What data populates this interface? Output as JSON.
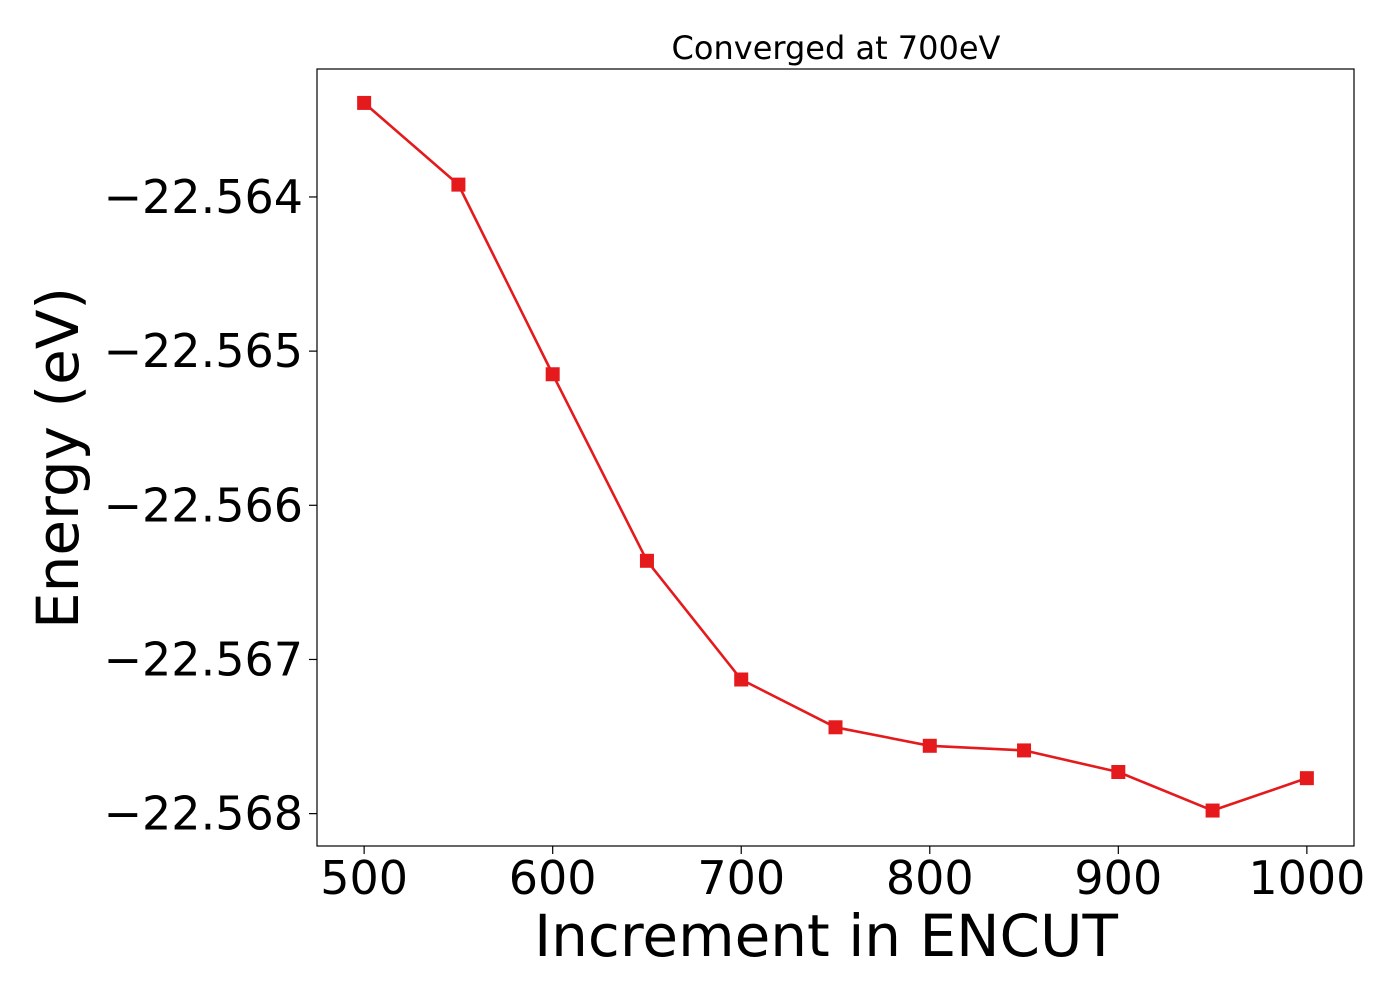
{
  "chart_data": {
    "type": "line",
    "title": "Converged at 700eV",
    "xlabel": "Increment in ENCUT",
    "ylabel": "Energy (eV)",
    "xlim": [
      475,
      1025
    ],
    "ylim": [
      -22.56821,
      -22.56317
    ],
    "x_ticks": [
      500,
      600,
      700,
      800,
      900,
      1000
    ],
    "x_tick_labels": [
      "500",
      "600",
      "700",
      "800",
      "900",
      "1000"
    ],
    "y_ticks": [
      -22.564,
      -22.565,
      -22.566,
      -22.567,
      -22.568
    ],
    "y_tick_labels": [
      "−22.564",
      "−22.565",
      "−22.566",
      "−22.567",
      "−22.568"
    ],
    "grid": false,
    "legend": "none",
    "colors": {
      "series": "#e41a1c",
      "axes": "#000000",
      "background": "#ffffff"
    },
    "series": [
      {
        "marker": "square",
        "x": [
          500,
          550,
          600,
          650,
          700,
          750,
          800,
          850,
          900,
          950,
          1000
        ],
        "y": [
          -22.56339,
          -22.56392,
          -22.56515,
          -22.56636,
          -22.56713,
          -22.56744,
          -22.56756,
          -22.56759,
          -22.56773,
          -22.56798,
          -22.56777
        ]
      }
    ]
  }
}
